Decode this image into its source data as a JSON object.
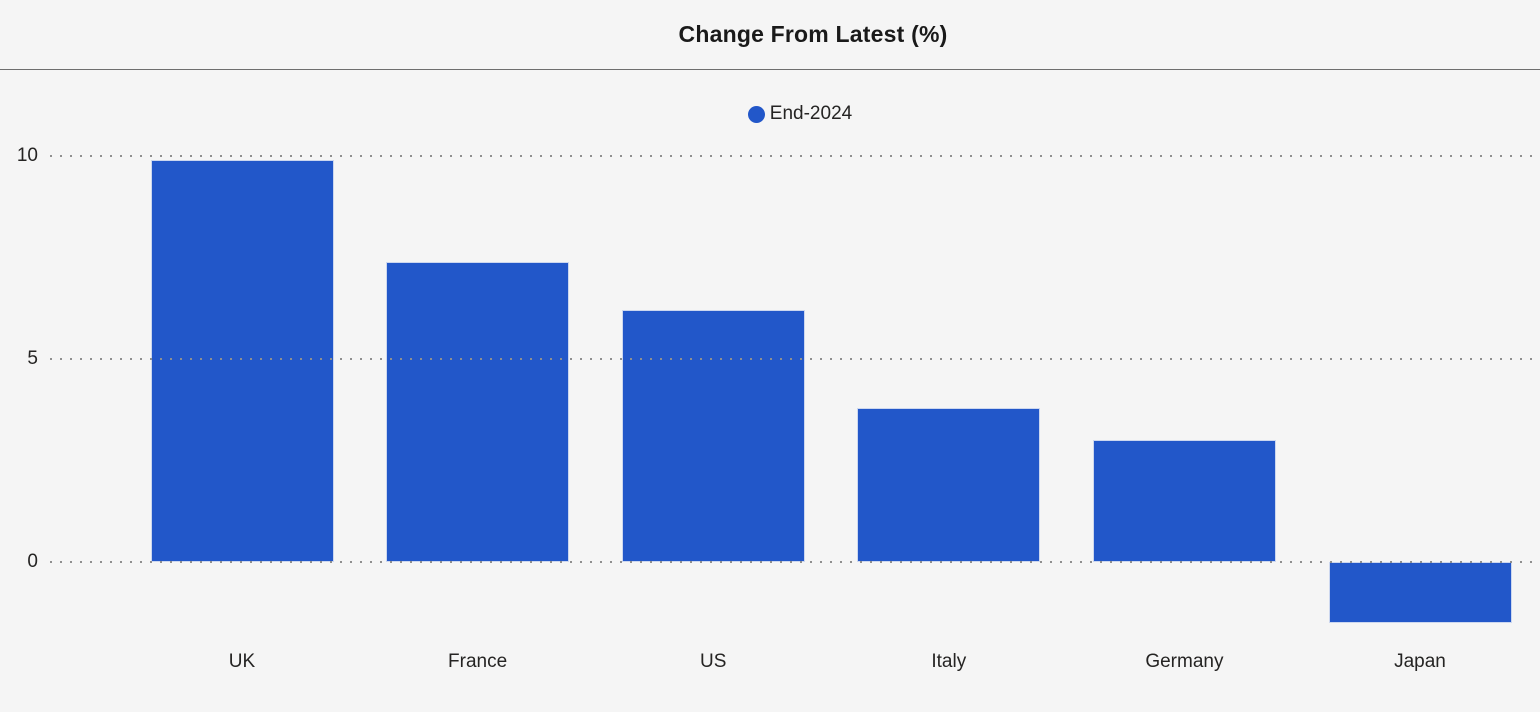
{
  "header": {
    "title": "Change From Latest (%)"
  },
  "legend": {
    "items": [
      {
        "label": "End-2024",
        "color": "#2257C9"
      }
    ]
  },
  "chart_data": {
    "type": "bar",
    "title": "Change From Latest (%)",
    "categories": [
      "UK",
      "France",
      "US",
      "Italy",
      "Germany",
      "Japan"
    ],
    "series": [
      {
        "name": "End-2024",
        "values": [
          9.9,
          7.4,
          6.2,
          3.8,
          3.0,
          -1.5
        ]
      }
    ],
    "xlabel": "",
    "ylabel": "",
    "yticks": [
      10,
      5,
      0
    ],
    "ylim": [
      -2,
      10.4
    ],
    "grid": "horizontal-dotted",
    "legend_position": "top-center",
    "bar_color": "#2257C9",
    "gridline_color": "#8f8f8f",
    "background_color": "#F5F5F5"
  }
}
